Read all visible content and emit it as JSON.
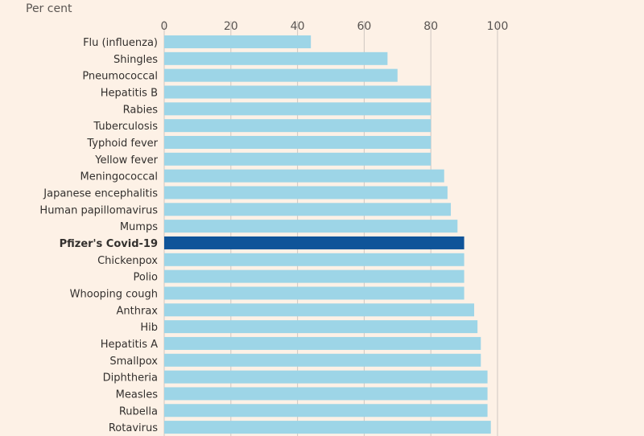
{
  "chart_data": {
    "type": "bar",
    "orientation": "horizontal",
    "unit_label": "Per cent",
    "xlim": [
      0,
      100
    ],
    "xticks": [
      0,
      20,
      40,
      60,
      80,
      100
    ],
    "grid": true,
    "highlight_category": "Pfizer's Covid-19",
    "colors": {
      "bar": "#9dd5e7",
      "highlight": "#0f5499",
      "grid": "#cfc8c2",
      "background": "#fdf1e6",
      "text": "#33302e"
    },
    "categories": [
      "Flu (influenza)",
      "Shingles",
      "Pneumococcal",
      "Hepatitis B",
      "Rabies",
      "Tuberculosis",
      "Typhoid fever",
      "Yellow fever",
      "Meningococcal",
      "Japanese encephalitis",
      "Human papillomavirus",
      "Mumps",
      "Pfizer's Covid-19",
      "Chickenpox",
      "Polio",
      "Whooping cough",
      "Anthrax",
      "Hib",
      "Hepatitis A",
      "Smallpox",
      "Diphtheria",
      "Measles",
      "Rubella",
      "Rotavirus"
    ],
    "values": [
      44,
      67,
      70,
      80,
      80,
      80,
      80,
      80,
      84,
      85,
      86,
      88,
      90,
      90,
      90,
      90,
      93,
      94,
      95,
      95,
      97,
      97,
      97,
      98
    ]
  }
}
